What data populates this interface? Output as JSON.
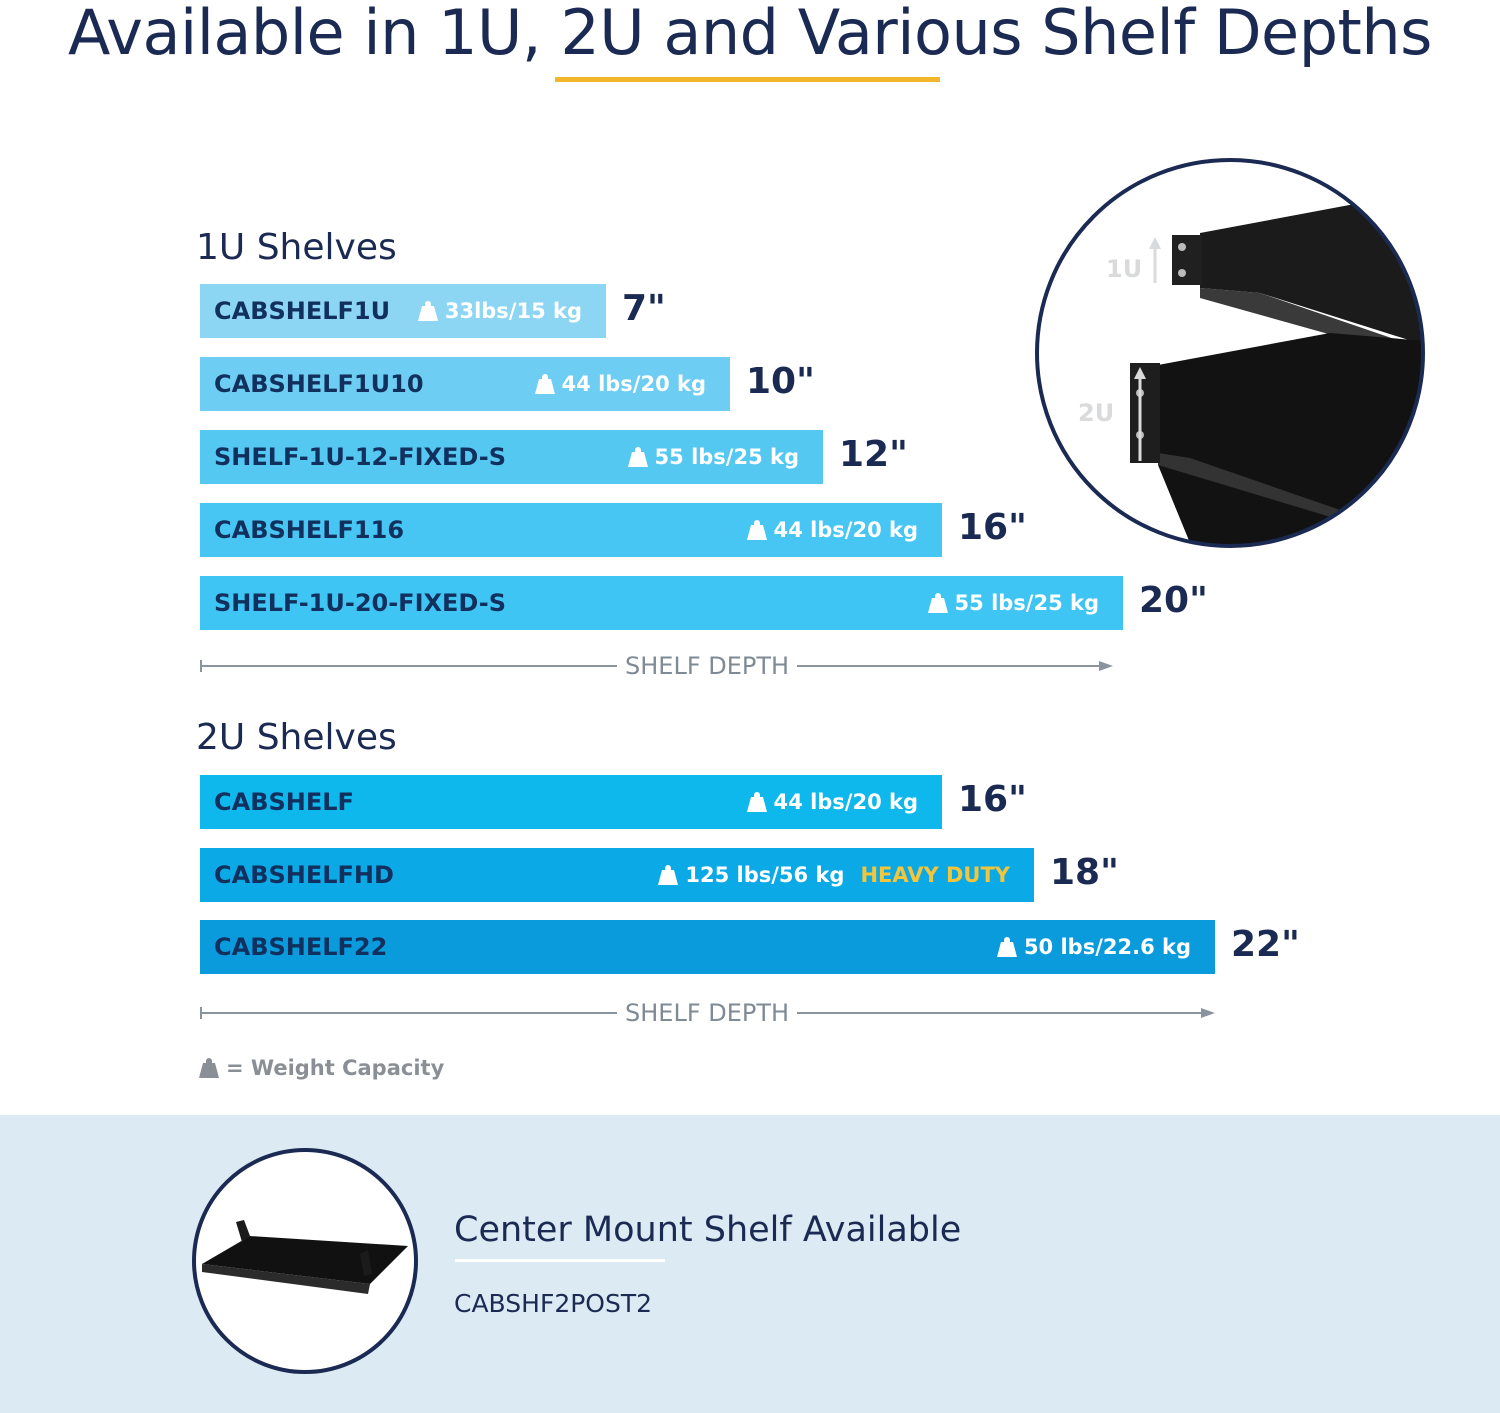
{
  "page": {
    "title": "Available in 1U, 2U and Various Shelf Depths",
    "accent_color": "#f2b62b",
    "text_color": "#1a2a52"
  },
  "legend": {
    "icon": "weight-icon",
    "text": "= Weight Capacity"
  },
  "inset": {
    "labels": [
      "1U",
      "2U"
    ]
  },
  "footer": {
    "title": "Center Mount Shelf Available",
    "model": "CABSHF2POST2",
    "background": "#dceaf4"
  },
  "chart_data": [
    {
      "type": "bar",
      "orientation": "horizontal",
      "title": "1U  Shelves",
      "xlabel": "SHELF DEPTH",
      "unit": "in",
      "categories": [
        "CABSHELF1U",
        "CABSHELF1U10",
        "SHELF-1U-12-FIXED-S",
        "CABSHELF116",
        "SHELF-1U-20-FIXED-S"
      ],
      "values": [
        7,
        10,
        12,
        16,
        20
      ],
      "value_labels": [
        "7\"",
        "10\"",
        "12\"",
        "16\"",
        "20\""
      ],
      "capacity_labels": [
        "33lbs/15 kg",
        "44 lbs/20 kg",
        "55 lbs/25 kg",
        "44 lbs/20 kg",
        "55 lbs/25 kg"
      ],
      "extra_labels": [
        "",
        "",
        "",
        "",
        ""
      ],
      "colors": [
        "#8dd6f3",
        "#6dcdf2",
        "#55c8f2",
        "#48c6f3",
        "#3fc5f4"
      ],
      "xlim": [
        0,
        22
      ]
    },
    {
      "type": "bar",
      "orientation": "horizontal",
      "title": "2U  Shelves",
      "xlabel": "SHELF DEPTH",
      "unit": "in",
      "categories": [
        "CABSHELF",
        "CABSHELFHD",
        "CABSHELF22"
      ],
      "values": [
        16,
        18,
        22
      ],
      "value_labels": [
        "16\"",
        "18\"",
        "22\""
      ],
      "capacity_labels": [
        "44 lbs/20 kg",
        "125 lbs/56 kg",
        "50 lbs/22.6 kg"
      ],
      "extra_labels": [
        "",
        "HEAVY DUTY",
        ""
      ],
      "colors": [
        "#0fb8ec",
        "#0ba9e6",
        "#0a9bdd"
      ],
      "xlim": [
        0,
        22
      ]
    }
  ]
}
